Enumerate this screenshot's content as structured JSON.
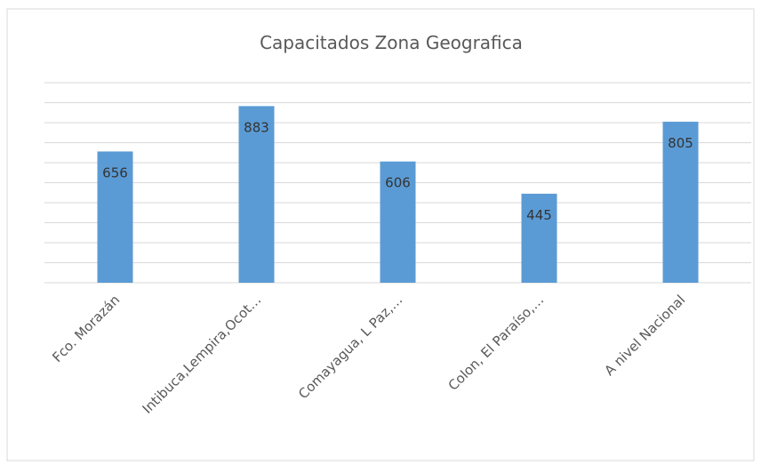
{
  "chart_data": {
    "type": "bar",
    "title": "Capacitados Zona Geografica",
    "categories": [
      "Fco. Morazán",
      "Intibuca,Lempira,Ocot…",
      "Comayagua, L Paz,…",
      "Colon, El Paraíso,…",
      "A nivel Nacional"
    ],
    "values": [
      656,
      883,
      606,
      445,
      805
    ],
    "color": "#5b9bd5",
    "ylim": [
      0,
      1000
    ],
    "yticks": [
      0,
      100,
      200,
      300,
      400,
      500,
      600,
      700,
      800,
      900,
      1000
    ],
    "grid": true
  }
}
